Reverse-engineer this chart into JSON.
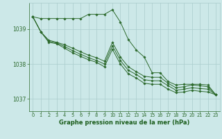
{
  "bg_color": "#cce8e8",
  "grid_color": "#aacccc",
  "line_color": "#2d6a2d",
  "marker_color": "#2d6a2d",
  "title": "Graphe pression niveau de la mer (hPa)",
  "title_color": "#1a5c1a",
  "xlim": [
    -0.5,
    23.5
  ],
  "ylim": [
    1036.65,
    1039.75
  ],
  "yticks": [
    1037,
    1038,
    1039
  ],
  "xticks": [
    0,
    1,
    2,
    3,
    4,
    5,
    6,
    7,
    8,
    9,
    10,
    11,
    12,
    13,
    14,
    15,
    16,
    17,
    18,
    19,
    20,
    21,
    22,
    23
  ],
  "series": [
    [
      1039.35,
      1039.3,
      1039.3,
      1039.3,
      1039.3,
      1039.3,
      1039.3,
      1039.42,
      1039.42,
      1039.42,
      1039.55,
      1039.2,
      1038.7,
      1038.4,
      1038.2,
      1037.75,
      1037.75,
      1037.5,
      1037.4,
      1037.42,
      1037.42,
      1037.42,
      1037.4,
      1037.12
    ],
    [
      1039.35,
      1038.92,
      1038.68,
      1038.62,
      1038.55,
      1038.45,
      1038.35,
      1038.25,
      1038.18,
      1038.08,
      1038.62,
      1038.2,
      1037.92,
      1037.78,
      1037.65,
      1037.62,
      1037.62,
      1037.45,
      1037.32,
      1037.35,
      1037.4,
      1037.38,
      1037.35,
      1037.12
    ],
    [
      1039.35,
      1038.92,
      1038.65,
      1038.6,
      1038.5,
      1038.38,
      1038.28,
      1038.18,
      1038.1,
      1038.0,
      1038.52,
      1038.1,
      1037.82,
      1037.7,
      1037.55,
      1037.52,
      1037.52,
      1037.38,
      1037.25,
      1037.28,
      1037.32,
      1037.3,
      1037.28,
      1037.12
    ],
    [
      1039.35,
      1038.92,
      1038.62,
      1038.58,
      1038.45,
      1038.32,
      1038.22,
      1038.12,
      1038.05,
      1037.92,
      1038.42,
      1038.0,
      1037.72,
      1037.6,
      1037.45,
      1037.42,
      1037.42,
      1037.28,
      1037.18,
      1037.2,
      1037.25,
      1037.22,
      1037.2,
      1037.12
    ]
  ]
}
